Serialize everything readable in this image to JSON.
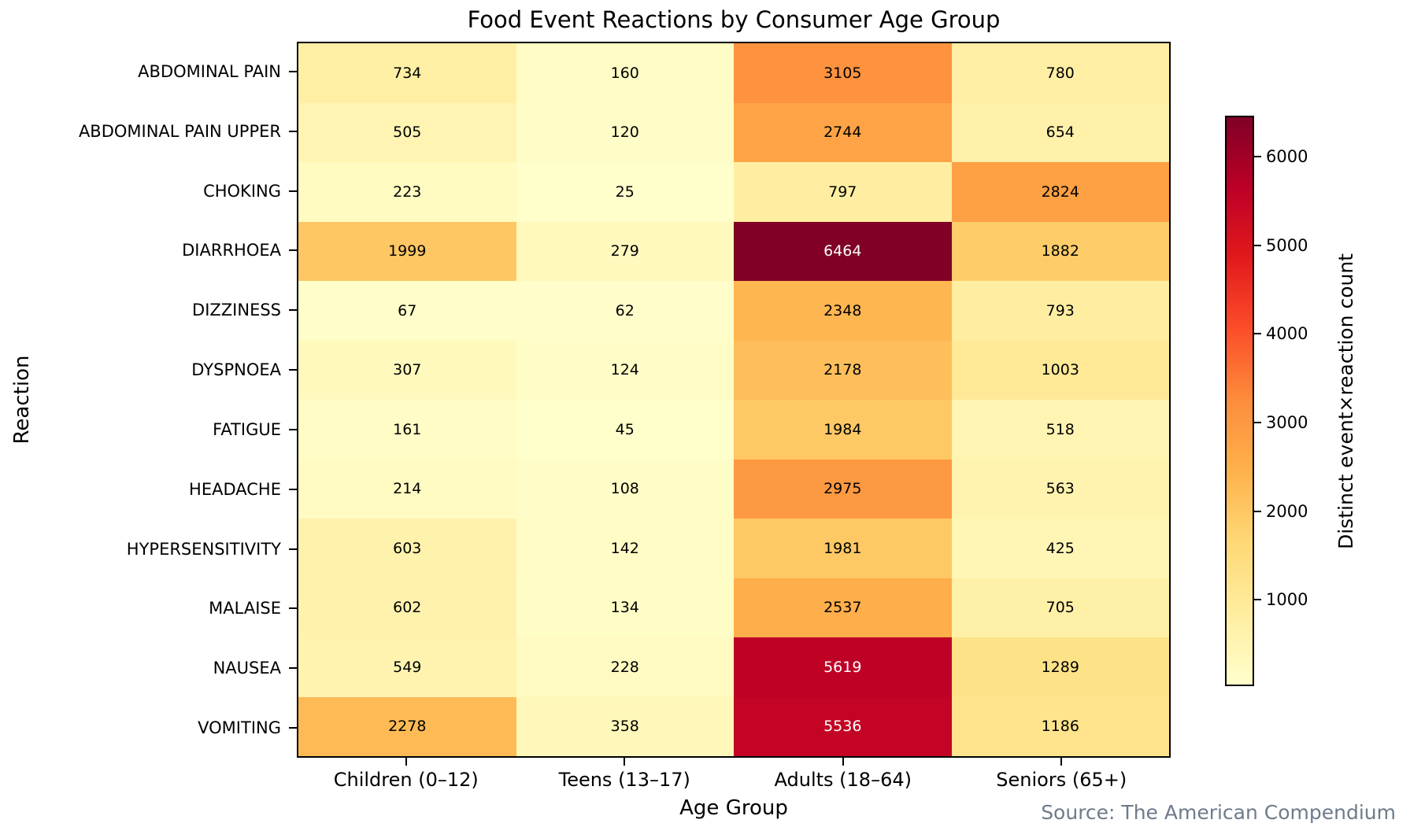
{
  "chart_data": {
    "type": "heatmap",
    "title": "Food Event Reactions by Consumer Age Group",
    "xlabel": "Age Group",
    "ylabel": "Reaction",
    "categories": [
      "Children (0–12)",
      "Teens (13–17)",
      "Adults (18–64)",
      "Seniors (65+)"
    ],
    "rows": [
      "ABDOMINAL PAIN",
      "ABDOMINAL PAIN UPPER",
      "CHOKING",
      "DIARRHOEA",
      "DIZZINESS",
      "DYSPNOEA",
      "FATIGUE",
      "HEADACHE",
      "HYPERSENSITIVITY",
      "MALAISE",
      "NAUSEA",
      "VOMITING"
    ],
    "values": [
      [
        734,
        160,
        3105,
        780
      ],
      [
        505,
        120,
        2744,
        654
      ],
      [
        223,
        25,
        797,
        2824
      ],
      [
        1999,
        279,
        6464,
        1882
      ],
      [
        67,
        62,
        2348,
        793
      ],
      [
        307,
        124,
        2178,
        1003
      ],
      [
        161,
        45,
        1984,
        518
      ],
      [
        214,
        108,
        2975,
        563
      ],
      [
        603,
        142,
        1981,
        425
      ],
      [
        602,
        134,
        2537,
        705
      ],
      [
        549,
        228,
        5619,
        1289
      ],
      [
        2278,
        358,
        5536,
        1186
      ]
    ],
    "vmin": 25,
    "vmax": 6464,
    "grid": false,
    "annotations": true,
    "annotation_dark_color": "#000000",
    "annotation_light_color": "#ffffff",
    "colormap": {
      "name": "YlOrRd",
      "stops": [
        "#ffffcc",
        "#ffeda0",
        "#fed976",
        "#feb24c",
        "#fd8d3c",
        "#fc4e2a",
        "#e31a1c",
        "#bd0026",
        "#800026"
      ]
    },
    "colorbar": {
      "label": "Distinct event×reaction count",
      "ticks": [
        1000,
        2000,
        3000,
        4000,
        5000,
        6000
      ],
      "position": "right"
    },
    "source": "Source: The American Compendium",
    "source_color": "#6e7b8a"
  }
}
